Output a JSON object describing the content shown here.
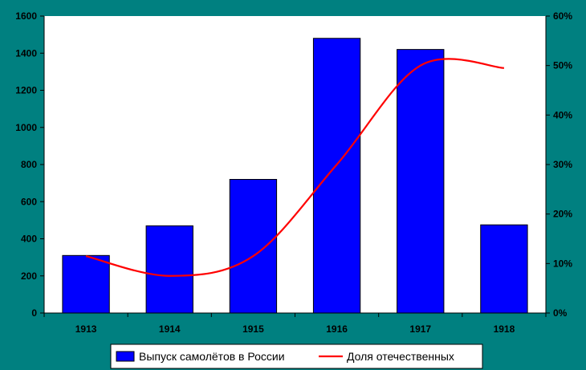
{
  "chart_data": {
    "type": "bar",
    "categories": [
      "1913",
      "1914",
      "1915",
      "1916",
      "1917",
      "1918"
    ],
    "series": [
      {
        "name": "Выпуск самолётов в России",
        "axis": "left",
        "chart_type": "bar",
        "values": [
          310,
          470,
          720,
          1480,
          1420,
          475
        ],
        "color": "#0000FF"
      },
      {
        "name": "Доля отечественных",
        "axis": "right",
        "chart_type": "line",
        "values": [
          11.5,
          7.5,
          11.5,
          30,
          50,
          49.5
        ],
        "color": "#FF0000"
      }
    ],
    "ylim": [
      0,
      1600
    ],
    "yticks": [
      "0",
      "200",
      "400",
      "600",
      "800",
      "1000",
      "1200",
      "1400",
      "1600"
    ],
    "y2lim": [
      0,
      60
    ],
    "y2ticks": [
      "0%",
      "10%",
      "20%",
      "30%",
      "40%",
      "50%",
      "60%"
    ],
    "grid": false,
    "legend": "bottom-center",
    "colors": {
      "background": "#008080",
      "plot_area": "#FFFFFF",
      "bar": "#0000FF",
      "line": "#FF0000"
    }
  }
}
